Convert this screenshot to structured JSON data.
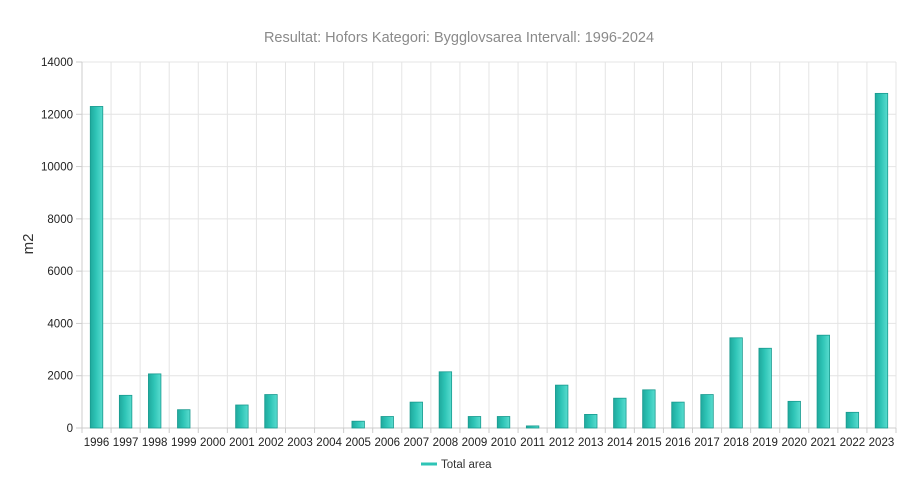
{
  "chart_data": {
    "type": "bar",
    "title": "Resultat: Hofors Kategori: Bygglovsarea Intervall: 1996-2024",
    "xlabel": "",
    "ylabel": "m2",
    "ylim": [
      0,
      14000
    ],
    "y_ticks": [
      "0",
      "2000",
      "4000",
      "6000",
      "8000",
      "10000",
      "12000",
      "14000"
    ],
    "grid": true,
    "legend_position": "bottom",
    "categories": [
      "1996",
      "1997",
      "1998",
      "1999",
      "2000",
      "2001",
      "2002",
      "2003",
      "2004",
      "2005",
      "2006",
      "2007",
      "2008",
      "2009",
      "2010",
      "2011",
      "2012",
      "2013",
      "2014",
      "2015",
      "2016",
      "2017",
      "2018",
      "2019",
      "2020",
      "2021",
      "2022",
      "2023"
    ],
    "series": [
      {
        "name": "Total area",
        "color": "#2ec4b6",
        "values": [
          12300,
          1250,
          2070,
          700,
          0,
          880,
          1280,
          0,
          0,
          260,
          440,
          990,
          2150,
          440,
          440,
          80,
          1640,
          520,
          1140,
          1460,
          990,
          1280,
          3450,
          3050,
          1020,
          3550,
          600,
          12800
        ]
      }
    ]
  }
}
